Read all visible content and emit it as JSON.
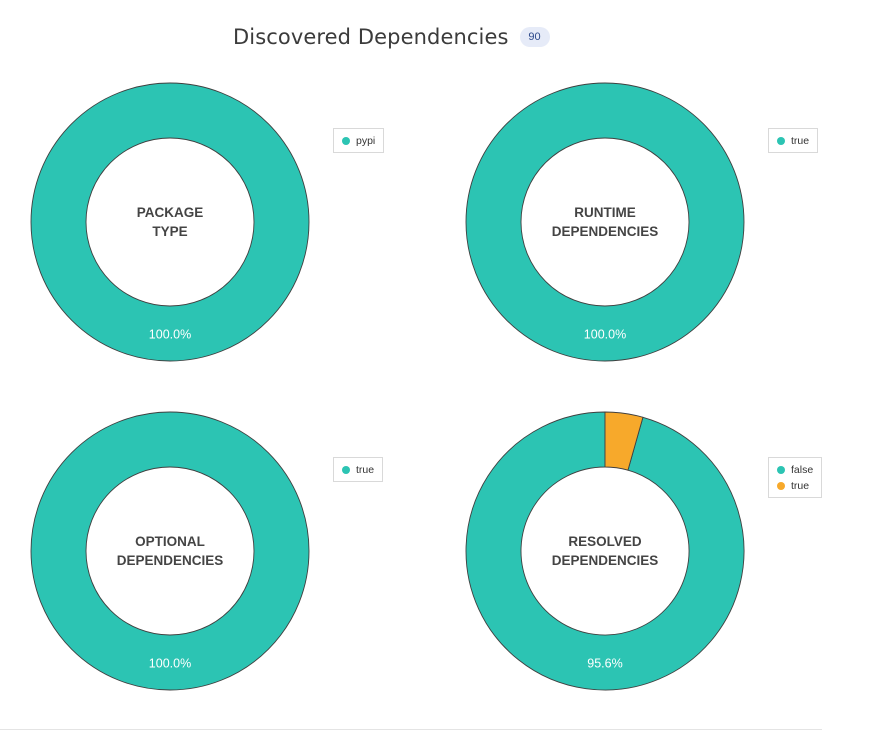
{
  "header": {
    "title": "Discovered Dependencies",
    "count": "90"
  },
  "colors": {
    "teal": "#2cc4b3",
    "orange": "#f7a92b",
    "stroke": "#3f3f3f"
  },
  "chart_data": [
    {
      "type": "pie",
      "subtype": "donut",
      "center_label": "PACKAGE\nTYPE",
      "categories": [
        "pypi"
      ],
      "values": [
        100.0
      ],
      "labels": [
        "100.0%"
      ],
      "colors": [
        "#2cc4b3"
      ],
      "legend": "top-right"
    },
    {
      "type": "pie",
      "subtype": "donut",
      "center_label": "RUNTIME\nDEPENDENCIES",
      "categories": [
        "true"
      ],
      "values": [
        100.0
      ],
      "labels": [
        "100.0%"
      ],
      "colors": [
        "#2cc4b3"
      ],
      "legend": "top-right"
    },
    {
      "type": "pie",
      "subtype": "donut",
      "center_label": "OPTIONAL\nDEPENDENCIES",
      "categories": [
        "true"
      ],
      "values": [
        100.0
      ],
      "labels": [
        "100.0%"
      ],
      "colors": [
        "#2cc4b3"
      ],
      "legend": "top-right"
    },
    {
      "type": "pie",
      "subtype": "donut",
      "center_label": "RESOLVED\nDEPENDENCIES",
      "categories": [
        "false",
        "true"
      ],
      "values": [
        95.6,
        4.4
      ],
      "labels": [
        "95.6%",
        ""
      ],
      "colors": [
        "#2cc4b3",
        "#f7a92b"
      ],
      "legend": "top-right"
    }
  ]
}
